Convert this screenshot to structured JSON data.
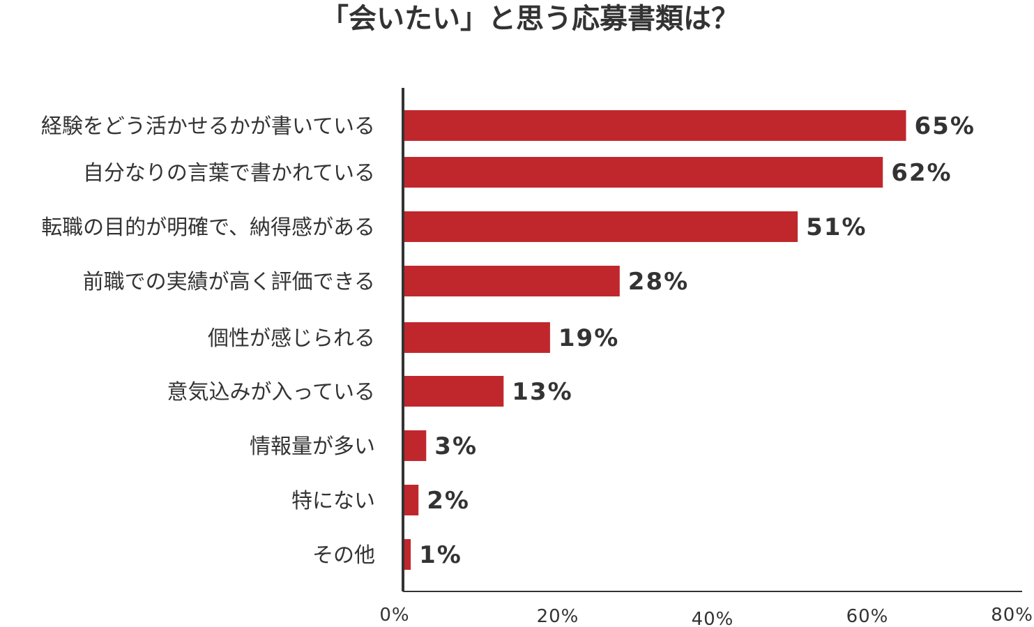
{
  "chart_data": {
    "type": "bar",
    "orientation": "horizontal",
    "title": "「会いたい」と思う応募書類は？",
    "categories": [
      "経験をどう活かせるかが書いている",
      "自分なりの言葉で書かれている",
      "転職の目的が明確で、納得感がある",
      "前職での実績が高く評価できる",
      "個性が感じられる",
      "意気込みが入っている",
      "情報量が多い",
      "特にない",
      "その他"
    ],
    "values": [
      65,
      62,
      51,
      28,
      19,
      13,
      3,
      2,
      1
    ],
    "value_labels": [
      "65%",
      "62%",
      "51%",
      "28%",
      "19%",
      "13%",
      "3%",
      "2%",
      "1%"
    ],
    "xlim": [
      0,
      80
    ],
    "x_ticks": [
      0,
      20,
      40,
      60,
      80
    ],
    "x_tick_labels": [
      "0%",
      "20%",
      "40%",
      "60%",
      "80%"
    ],
    "grid": false,
    "legend": "none",
    "bar_color": "#c0272d",
    "axis_color": "#333333"
  }
}
